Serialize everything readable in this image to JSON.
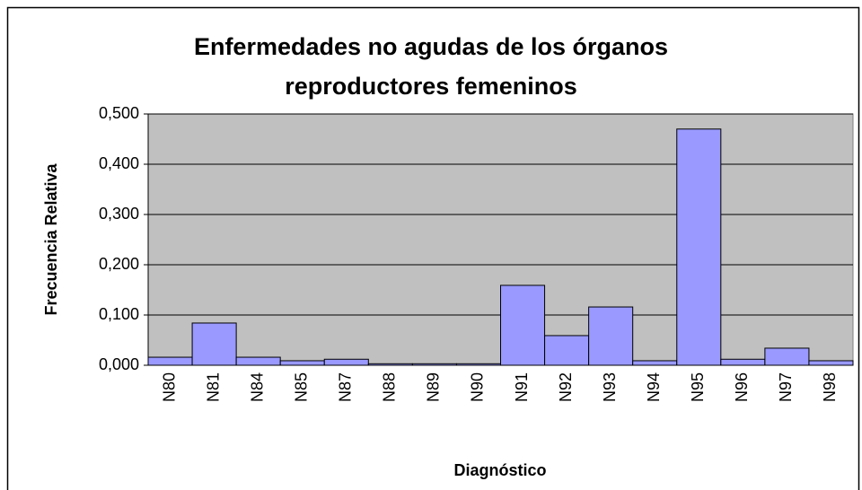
{
  "chart_data": {
    "type": "bar",
    "title": "Enfermedades no agudas de los órganos reproductores femeninos",
    "x_label": "Diagnóstico",
    "y_label": "Frecuencia Relativa",
    "categories": [
      "N80",
      "N81",
      "N84",
      "N85",
      "N87",
      "N88",
      "N89",
      "N90",
      "N91",
      "N92",
      "N93",
      "N94",
      "N95",
      "N96",
      "N97",
      "N98"
    ],
    "values": [
      0.016,
      0.084,
      0.016,
      0.009,
      0.012,
      0.003,
      0.003,
      0.003,
      0.159,
      0.059,
      0.116,
      0.009,
      0.47,
      0.012,
      0.034,
      0.009
    ],
    "color": "#9999ff",
    "ylim": [
      0,
      0.5
    ],
    "yticks": [
      {
        "value": 0,
        "label": "0,000"
      },
      {
        "value": 0.1,
        "label": "0,100"
      },
      {
        "value": 0.2,
        "label": "0,200"
      },
      {
        "value": 0.3,
        "label": "0,300"
      },
      {
        "value": 0.4,
        "label": "0,400"
      },
      {
        "value": 0.5,
        "label": "0,500"
      }
    ],
    "grid": true
  }
}
